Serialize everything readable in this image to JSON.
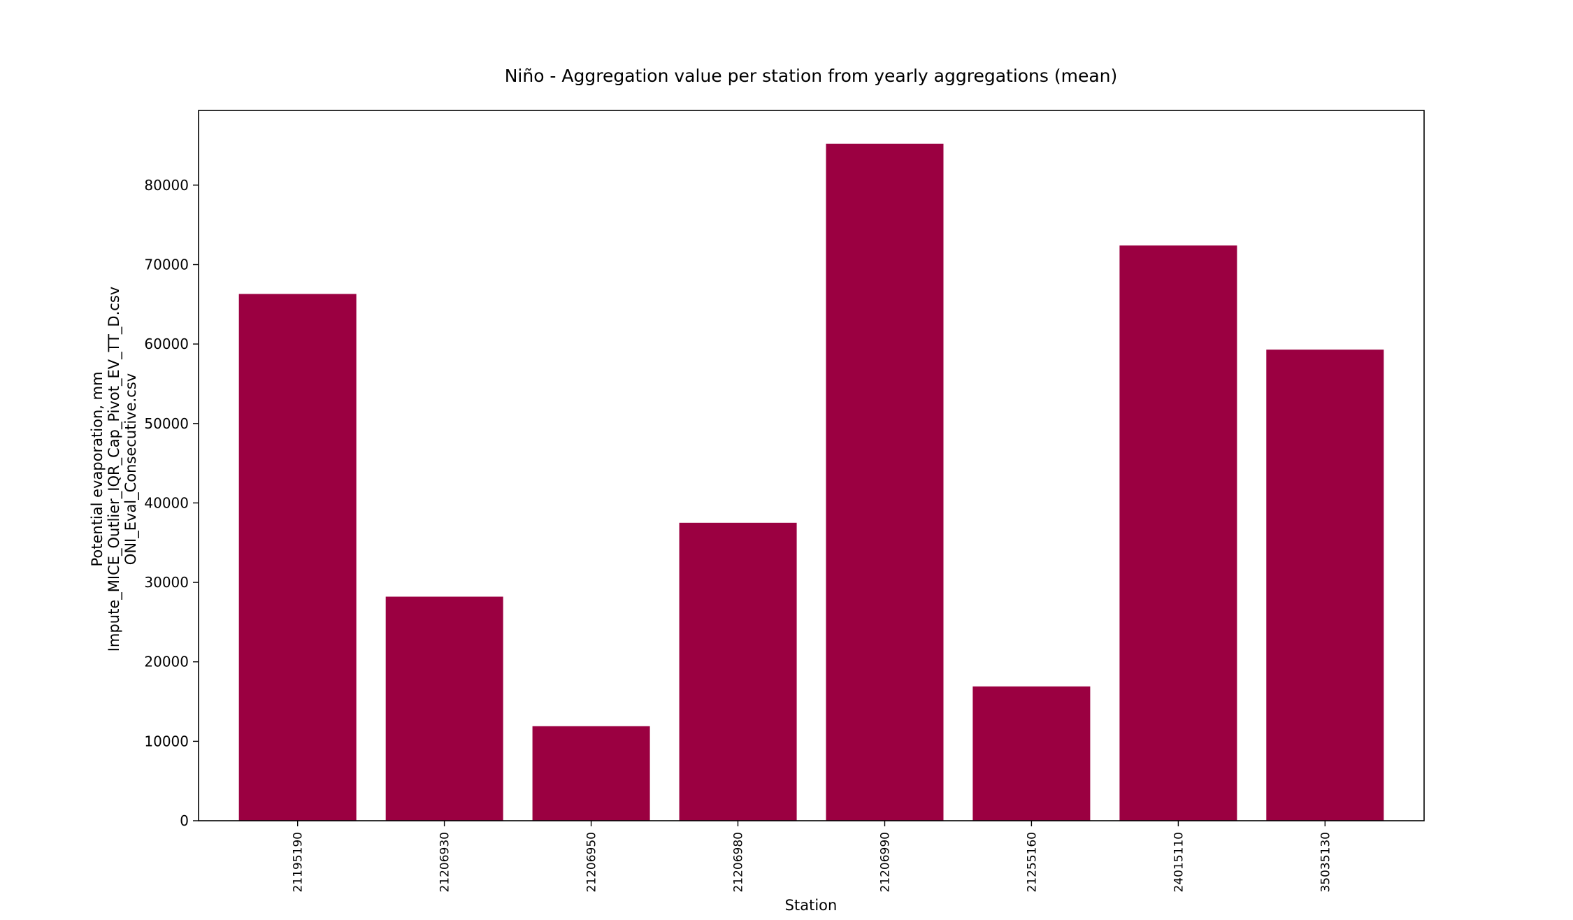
{
  "chart_data": {
    "type": "bar",
    "title": "Niño - Aggregation value per station from yearly aggregations (mean)",
    "xlabel": "Station",
    "ylabel_lines": [
      "Potential evaporation, mm",
      "Impute_MICE_Outlier_IQR_Cap_Pivot_EV_TT_D.csv",
      "ONI_Eval_Consecutive.csv"
    ],
    "categories": [
      "21195190",
      "21206930",
      "21206950",
      "21206980",
      "21206990",
      "21255160",
      "24015110",
      "35035130"
    ],
    "values": [
      66300,
      28200,
      11900,
      37500,
      85200,
      16900,
      72400,
      59300
    ],
    "ylim": [
      0,
      89400
    ],
    "yticks": [
      0,
      10000,
      20000,
      30000,
      40000,
      50000,
      60000,
      70000,
      80000
    ],
    "bar_color": "#9b0041",
    "grid": false,
    "legend": "none"
  }
}
